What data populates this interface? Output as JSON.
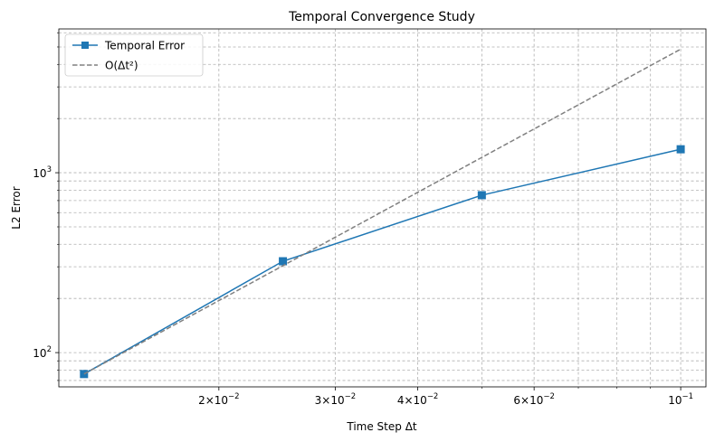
{
  "chart_data": {
    "type": "line",
    "title": "Temporal Convergence Study",
    "xlabel": "Time Step Δt",
    "ylabel": "L2 Error",
    "xscale": "log",
    "yscale": "log",
    "xlim": [
      0.01145,
      0.1092
    ],
    "ylim": [
      64.5,
      6300
    ],
    "grid": true,
    "legend_position": "top-left",
    "x_ticks": [
      {
        "value": 0.02,
        "mantissa": "2",
        "base": "10",
        "exp": "−2"
      },
      {
        "value": 0.03,
        "mantissa": "3",
        "base": "10",
        "exp": "−2"
      },
      {
        "value": 0.04,
        "mantissa": "4",
        "base": "10",
        "exp": "−2"
      },
      {
        "value": 0.06,
        "mantissa": "6",
        "base": "10",
        "exp": "−2"
      },
      {
        "value": 0.1,
        "mantissa": "",
        "base": "10",
        "exp": "−1"
      }
    ],
    "x_minor_grid": [
      0.05,
      0.07,
      0.08,
      0.09
    ],
    "y_ticks": [
      {
        "value": 100,
        "base": "10",
        "exp": "2"
      },
      {
        "value": 1000,
        "base": "10",
        "exp": "3"
      }
    ],
    "y_minor_grid": [
      70,
      80,
      90,
      200,
      300,
      400,
      500,
      600,
      700,
      800,
      900,
      2000,
      3000,
      4000,
      5000,
      6000
    ],
    "series": [
      {
        "name": "Temporal Error",
        "color": "#1f77b4",
        "marker": "square",
        "linestyle": "solid",
        "x": [
          0.0125,
          0.025,
          0.05,
          0.1
        ],
        "y": [
          76,
          322,
          750,
          1350
        ]
      },
      {
        "name": "O(Δt²)",
        "color": "#808080",
        "marker": "none",
        "linestyle": "dashed",
        "x": [
          0.0125,
          0.1
        ],
        "y": [
          76,
          4864
        ]
      }
    ]
  }
}
